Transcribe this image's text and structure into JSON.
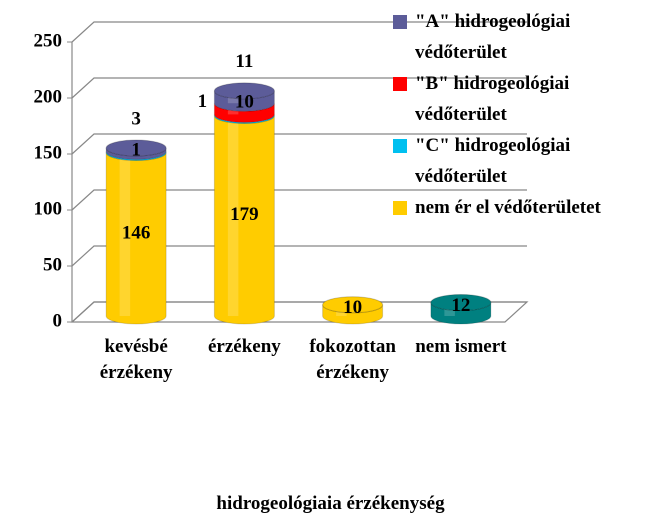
{
  "chart_data": {
    "type": "bar3d",
    "x_label": "hidrogeológiaia érzékenység",
    "categories": [
      "kevésbé érzékeny",
      "érzékeny",
      "fokozottan érzékeny",
      "nem ismert"
    ],
    "series": [
      {
        "name": "nem ér el védőterületet",
        "color": "#ffcc00",
        "point_colors": [
          "#ffcc00",
          "#ffcc00",
          "#ffcc00",
          "#008080"
        ],
        "values": [
          146,
          179,
          10,
          12
        ]
      },
      {
        "name": "\"C\" hidrogeológiai védőterület",
        "color": "#00c0f0",
        "values": [
          1,
          1,
          null,
          null
        ]
      },
      {
        "name": "\"B\" hidrogeológiai védőterület",
        "color": "#ff0000",
        "values": [
          null,
          10,
          null,
          null
        ]
      },
      {
        "name": "\"A\" hidrogeológiai védőterület",
        "color": "#5c5c99",
        "values": [
          3,
          11,
          null,
          null
        ]
      }
    ],
    "ylim": [
      0,
      250
    ],
    "yticks": [
      0,
      50,
      100,
      150,
      200,
      250
    ],
    "grid": true
  }
}
